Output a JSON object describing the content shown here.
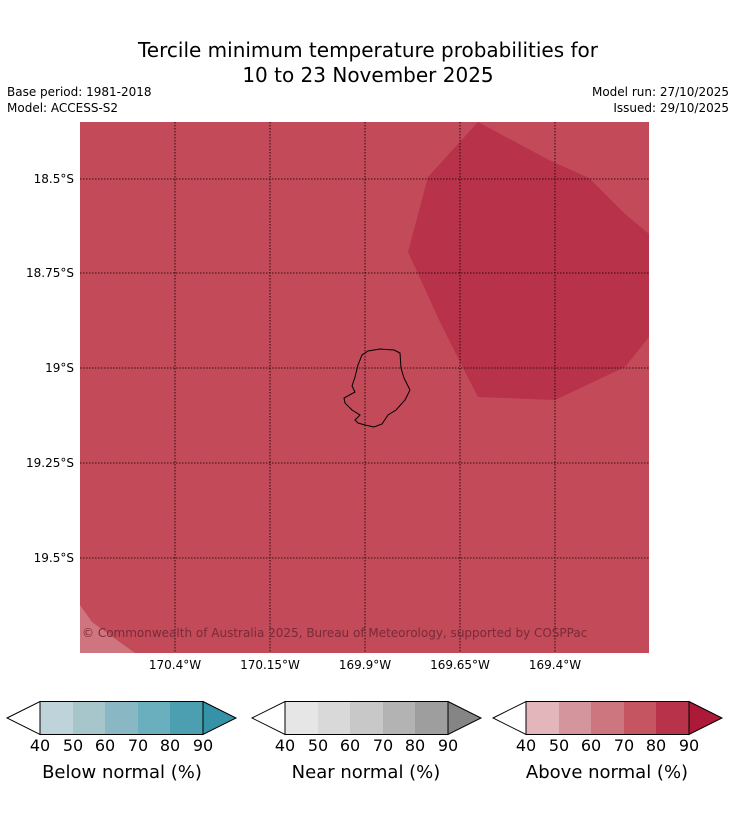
{
  "title_line1": "Tercile minimum temperature probabilities for",
  "title_line2": "10 to 23 November 2025",
  "base_period": "Base period: 1981-2018",
  "model": "Model: ACCESS-S2",
  "model_run": "Model run: 27/10/2025",
  "issued": "Issued: 29/10/2025",
  "copyright": "© Commonwealth of Australia 2025, Bureau of Meteorology, supported by COSPPac",
  "map": {
    "lat_labels": [
      "18.5°S",
      "18.75°S",
      "19°S",
      "19.25°S",
      "19.5°S"
    ],
    "lon_labels": [
      "170.4°W",
      "170.15°W",
      "169.9°W",
      "169.65°W",
      "169.4°W"
    ],
    "colors": {
      "band_70_80": "#c24a59",
      "band_80_90": "#b83349",
      "band_60_70": "#cf7580"
    }
  },
  "colorbars": [
    {
      "title": "Below normal (%)",
      "ticks": [
        "40",
        "50",
        "60",
        "70",
        "80",
        "90"
      ],
      "colors": [
        "#ffffff",
        "#bfd4da",
        "#a6c6cc",
        "#89b7c3",
        "#6aafbe",
        "#4c9fb1",
        "#3692a7"
      ]
    },
    {
      "title": "Near normal (%)",
      "ticks": [
        "40",
        "50",
        "60",
        "70",
        "80",
        "90"
      ],
      "colors": [
        "#ffffff",
        "#e6e6e6",
        "#d9d9d9",
        "#c8c8c8",
        "#b3b3b3",
        "#9e9e9e",
        "#858585"
      ]
    },
    {
      "title": "Above normal (%)",
      "ticks": [
        "40",
        "50",
        "60",
        "70",
        "80",
        "90"
      ],
      "colors": [
        "#ffffff",
        "#e3b6bb",
        "#d5959c",
        "#cd7680",
        "#c45561",
        "#b8334a",
        "#ac1a38"
      ]
    }
  ]
}
